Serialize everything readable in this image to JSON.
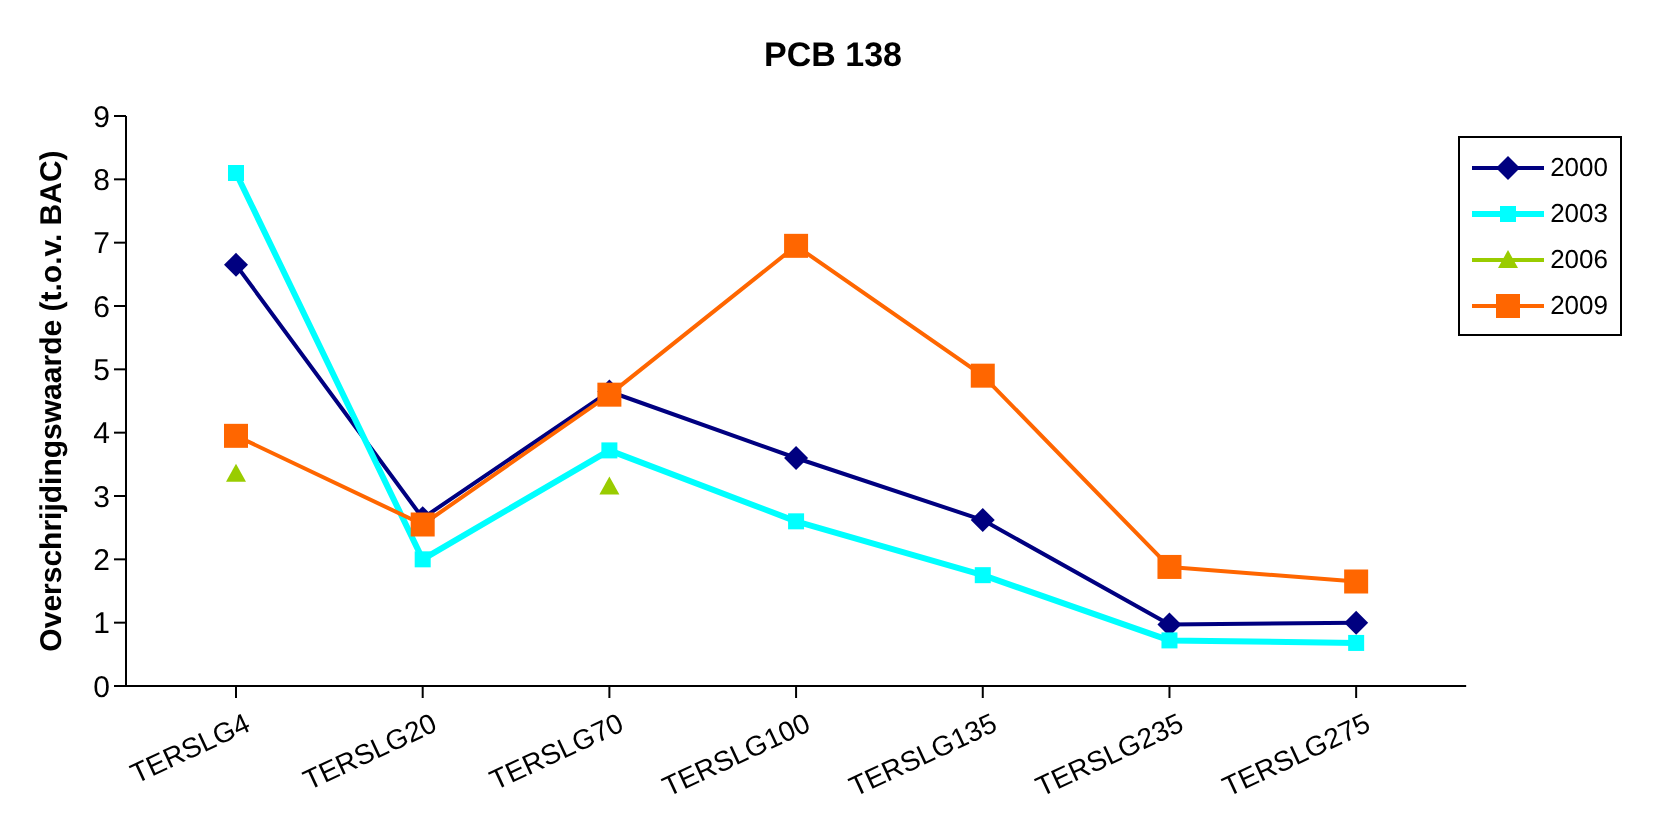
{
  "chart_data": {
    "type": "line",
    "title": "PCB 138",
    "ylabel": "Overschrijdingswaarde (t.o.v. BAC)",
    "categories": [
      "TERSLG4",
      "TERSLG20",
      "TERSLG70",
      "TERSLG100",
      "TERSLG135",
      "TERSLG235",
      "TERSLG275"
    ],
    "series": [
      {
        "name": "2000",
        "color": "#000080",
        "marker": "diamond",
        "values": [
          6.65,
          2.65,
          4.65,
          3.6,
          2.62,
          0.97,
          1.0
        ]
      },
      {
        "name": "2003",
        "color": "#00ffff",
        "marker": "square",
        "values": [
          8.1,
          2.0,
          3.72,
          2.6,
          1.75,
          0.72,
          0.68
        ]
      },
      {
        "name": "2006",
        "type": "scatter",
        "color": "#99cc00",
        "marker": "triangle",
        "values": [
          3.35,
          null,
          3.15,
          null,
          null,
          null,
          null
        ]
      },
      {
        "name": "2009",
        "color": "#ff6600",
        "marker": "square",
        "values": [
          3.95,
          2.55,
          4.6,
          6.95,
          4.9,
          1.88,
          1.65
        ]
      }
    ],
    "ylim": [
      0,
      9
    ],
    "yticks": [
      0,
      1,
      2,
      3,
      4,
      5,
      6,
      7,
      8,
      9
    ],
    "grid": false,
    "legend": "top right"
  }
}
